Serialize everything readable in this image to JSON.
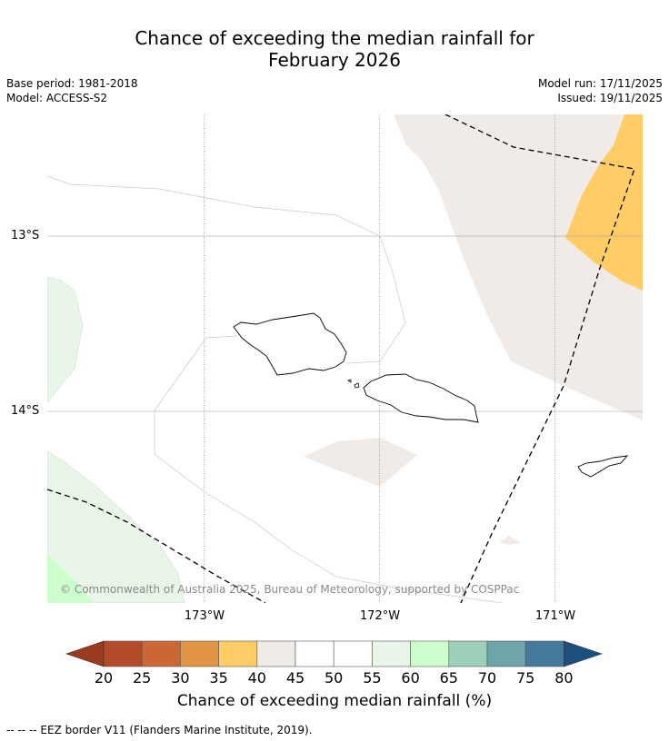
{
  "title": {
    "line1": "Chance of exceeding the median rainfall for",
    "line2": "February 2026"
  },
  "meta": {
    "base_period": "Base period: 1981-2018",
    "model": "Model: ACCESS-S2",
    "model_run": "Model run: 17/11/2025",
    "issued": "Issued: 19/11/2025"
  },
  "map": {
    "lat_labels": [
      "13°S",
      "14°S"
    ],
    "lon_labels": [
      "173°W",
      "172°W",
      "171°W"
    ],
    "copyright": "© Commonwealth of Australia 2025, Bureau of Meteorology, supported by COSPPac",
    "colors": {
      "band_40_45": "#f0ebe6",
      "band_35_40": "#ffcc66",
      "band_55_60": "#e8f5e8",
      "band_60_65": "#ccffcc",
      "eez_line": "#000000"
    }
  },
  "colorbar": {
    "ticks": [
      "20",
      "25",
      "30",
      "35",
      "40",
      "45",
      "50",
      "55",
      "60",
      "65",
      "70",
      "75",
      "80"
    ],
    "colors": [
      "#b34a28",
      "#cc6633",
      "#e09444",
      "#ffcc66",
      "#f0ebe6",
      "#ffffff",
      "#ffffff",
      "#e8f5e8",
      "#ccffcc",
      "#9ecfb8",
      "#6ea5a8",
      "#447a9c"
    ],
    "under_color": "#9e3a1f",
    "over_color": "#1d4f80",
    "title": "Chance of exceeding median rainfall (%)"
  },
  "footnote": "--  --  -- EEZ border V11 (Flanders Marine Institute, 2019)."
}
